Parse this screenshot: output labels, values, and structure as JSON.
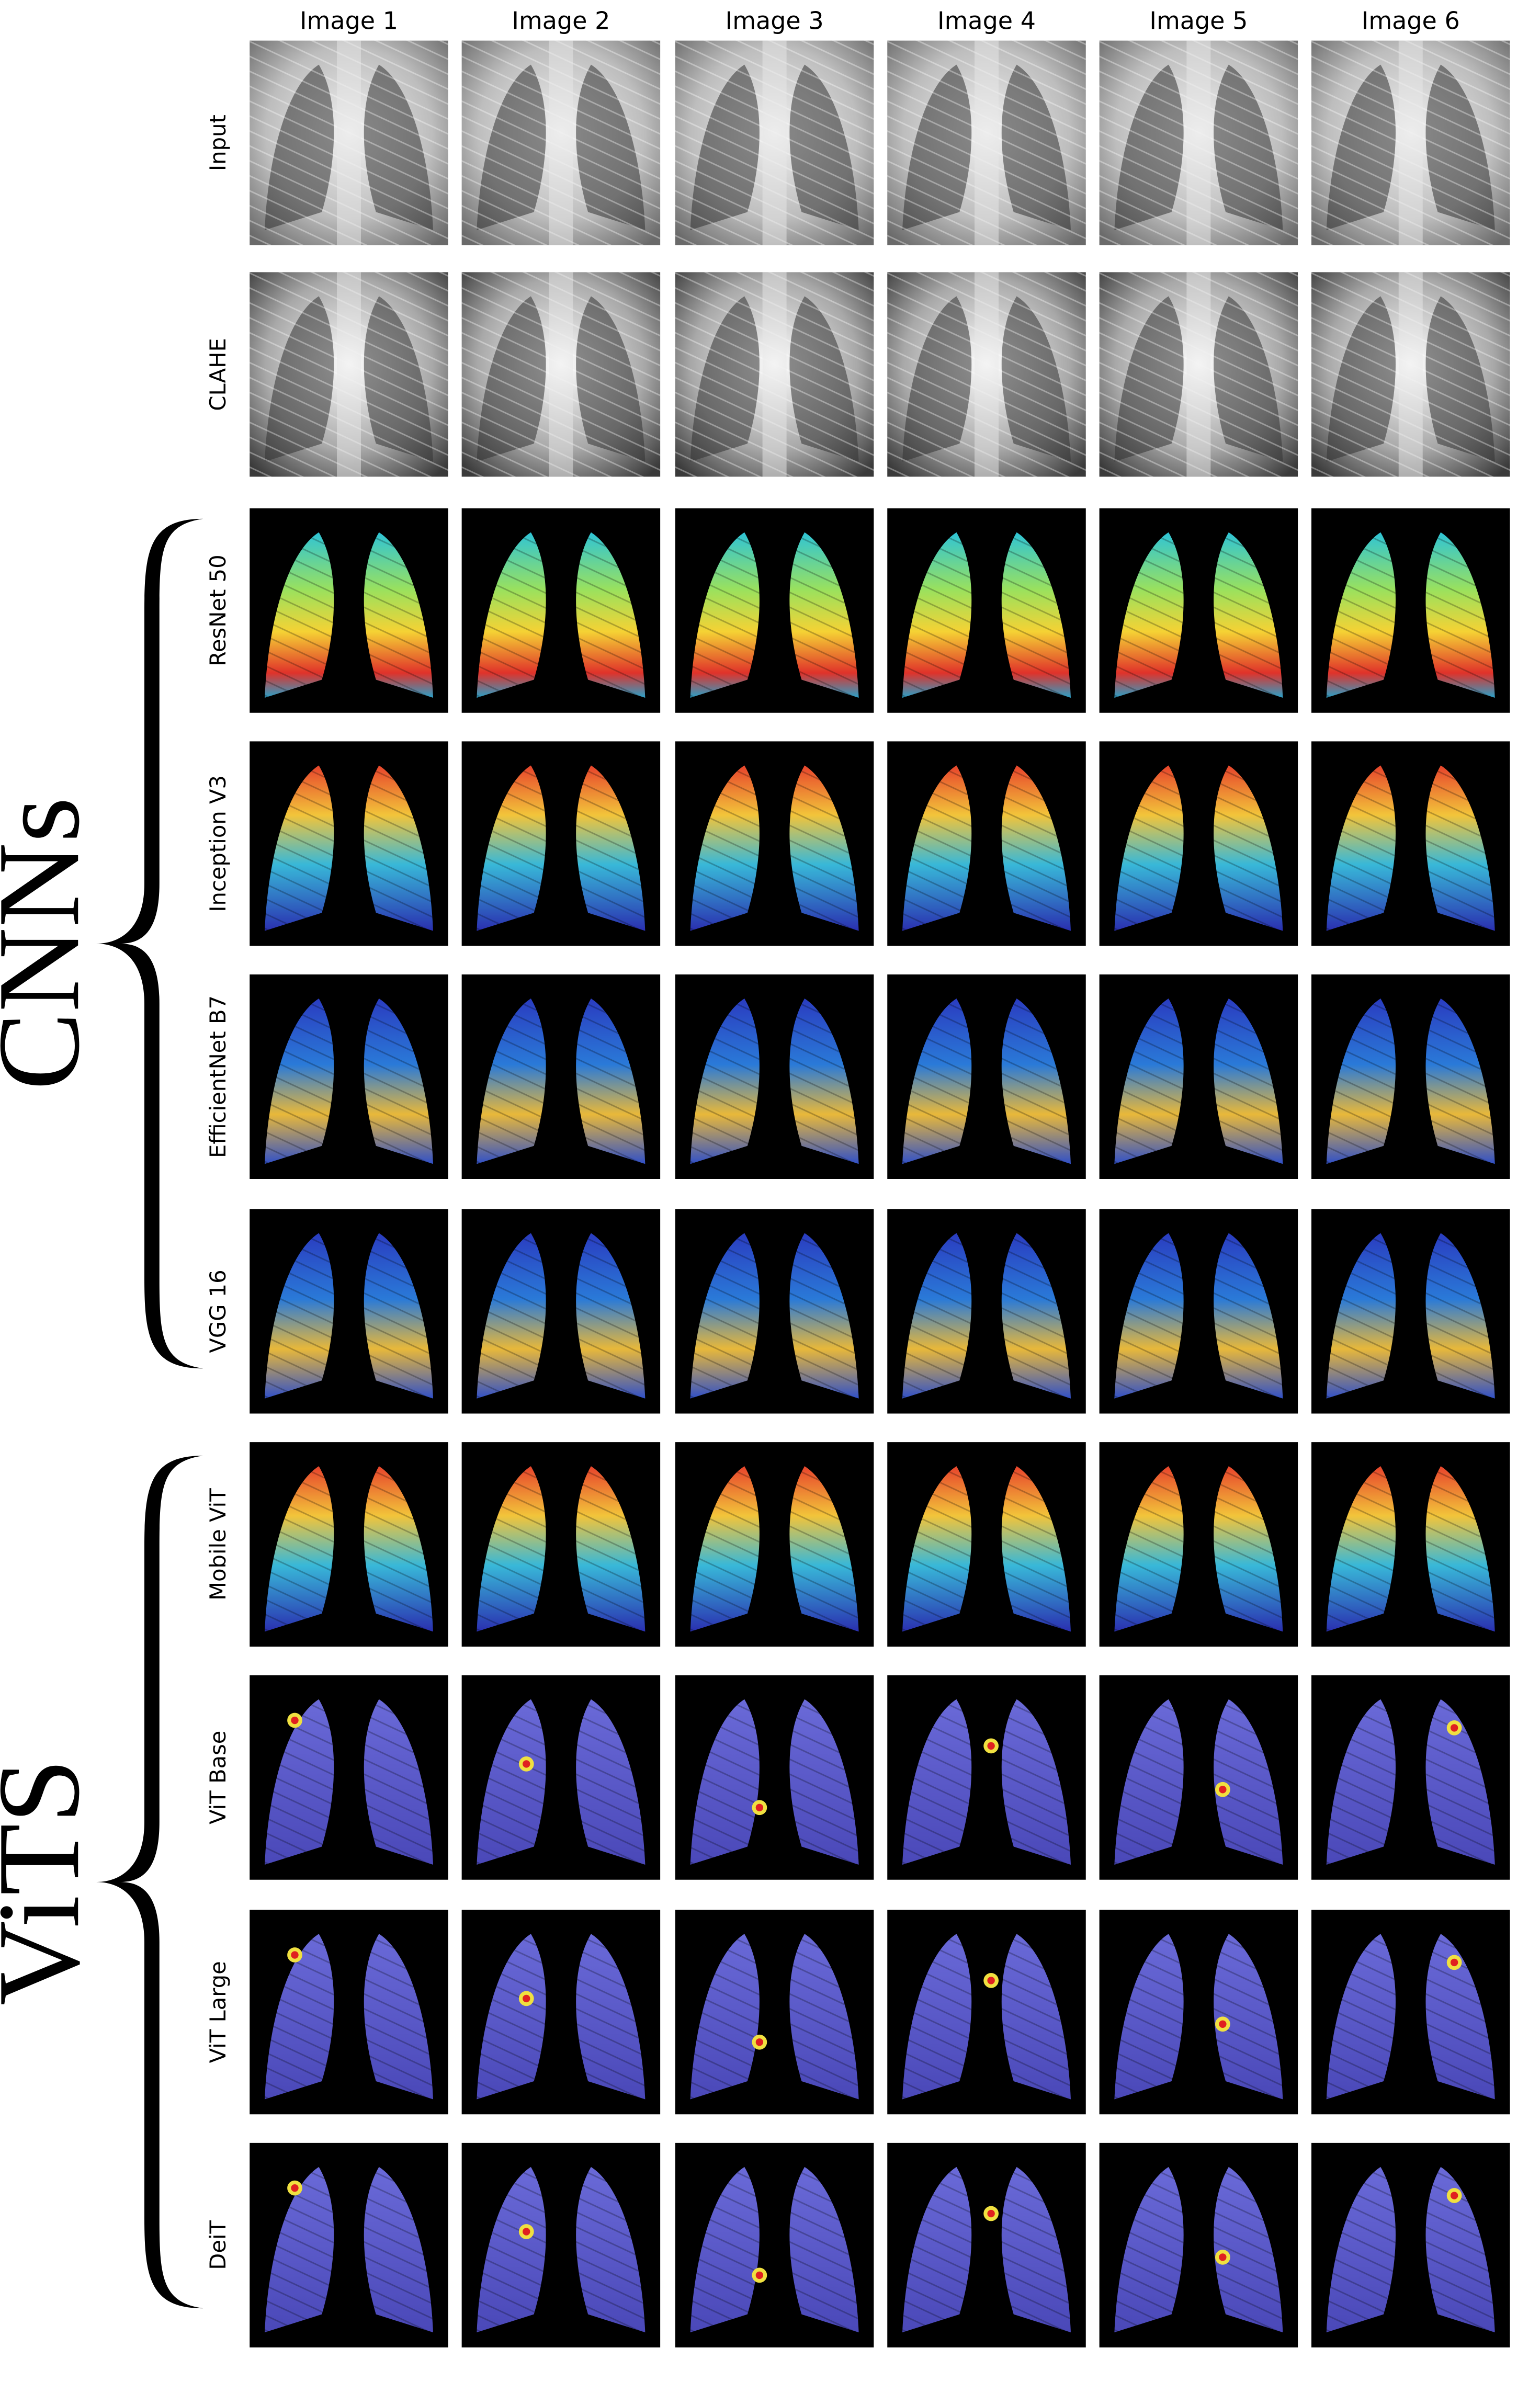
{
  "columns": [
    "Image 1",
    "Image 2",
    "Image 3",
    "Image 4",
    "Image 5",
    "Image 6"
  ],
  "rows": [
    "Input",
    "CLAHE",
    "ResNet 50",
    "Inception V3",
    "EfficientNet B7",
    "VGG 16",
    "Mobile ViT",
    "ViT Base",
    "ViT Large",
    "DeiT"
  ],
  "groups": [
    "CNNs",
    "ViTS"
  ]
}
